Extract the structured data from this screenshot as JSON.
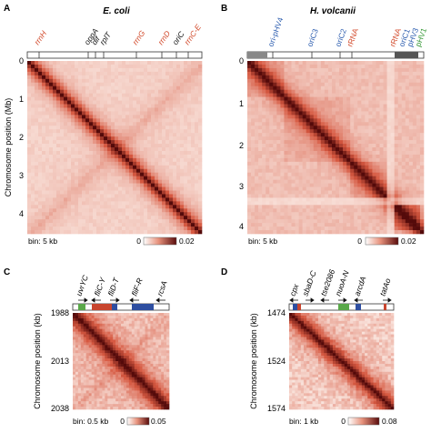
{
  "colors": {
    "hic_high": "#5a0c0c",
    "hic_mid": "#c43c2c",
    "hic_low": "#f6d6c8",
    "bg": "#ffffff",
    "rrna_label": "#d2492a",
    "ori_label": "#2f5fb0",
    "phv_label": "#3a9a3a",
    "gene_green": "#5aa84a",
    "gene_red": "#c8452e",
    "gene_blue": "#2e4ea0"
  },
  "panels": [
    {
      "letter": "A",
      "title": "E. coli",
      "ylabel": "Chromosome position (Mb)",
      "yticks": [
        "0",
        "1",
        "2",
        "3",
        "4"
      ],
      "bin": "bin: 5 kb",
      "scale_min": "0",
      "scale_max": "0.02",
      "labels": [
        {
          "text": "rrnH",
          "color": "rrna"
        },
        {
          "text": "oppA",
          "color": "black"
        },
        {
          "text": "dif",
          "color": "black"
        },
        {
          "text": "rplT",
          "color": "black"
        },
        {
          "text": "rrnG",
          "color": "rrna"
        },
        {
          "text": "rrnD",
          "color": "rrna"
        },
        {
          "text": "oriC",
          "color": "black"
        },
        {
          "text": "rrnC-E",
          "color": "rrna"
        }
      ]
    },
    {
      "letter": "B",
      "title": "H. volcanii",
      "ylabel": "",
      "yticks": [
        "0",
        "1",
        "2",
        "3",
        "4"
      ],
      "bin": "bin: 5 kb",
      "scale_min": "0",
      "scale_max": "0.02",
      "labels": [
        {
          "text": "ori-pHV4",
          "color": "ori"
        },
        {
          "text": "oriC3",
          "color": "ori"
        },
        {
          "text": "oriC2",
          "color": "ori"
        },
        {
          "text": "rRNA",
          "color": "rrna"
        },
        {
          "text": "rRNA",
          "color": "rrna"
        },
        {
          "text": "oriC1",
          "color": "ori"
        },
        {
          "text": "pHV3",
          "color": "ori"
        },
        {
          "text": "pHV1",
          "color": "phv"
        }
      ]
    },
    {
      "letter": "C",
      "title": "",
      "ylabel": "Chromosome position (kb)",
      "yticks": [
        "1988",
        "2013",
        "2038"
      ],
      "bin": "bin: 0.5 kb",
      "scale_min": "0",
      "scale_max": "0.05",
      "labels": [
        {
          "text": "uvrYC",
          "color": "black"
        },
        {
          "text": "fliC-Y",
          "color": "black"
        },
        {
          "text": "fliD-T",
          "color": "black"
        },
        {
          "text": "fliF-R",
          "color": "black"
        },
        {
          "text": "rcsA",
          "color": "black"
        }
      ]
    },
    {
      "letter": "D",
      "title": "",
      "ylabel": "Chromosome position (kb)",
      "yticks": [
        "1474",
        "1524",
        "1574"
      ],
      "bin": "bin: 1 kb",
      "scale_min": "0",
      "scale_max": "0.08",
      "labels": [
        {
          "text": "cpx",
          "color": "black"
        },
        {
          "text": "sbaD-C",
          "color": "black"
        },
        {
          "text": "tse2086",
          "color": "black"
        },
        {
          "text": "nuoA-N",
          "color": "black"
        },
        {
          "text": "arcdA",
          "color": "black"
        },
        {
          "text": "tatAo",
          "color": "black"
        }
      ]
    }
  ]
}
